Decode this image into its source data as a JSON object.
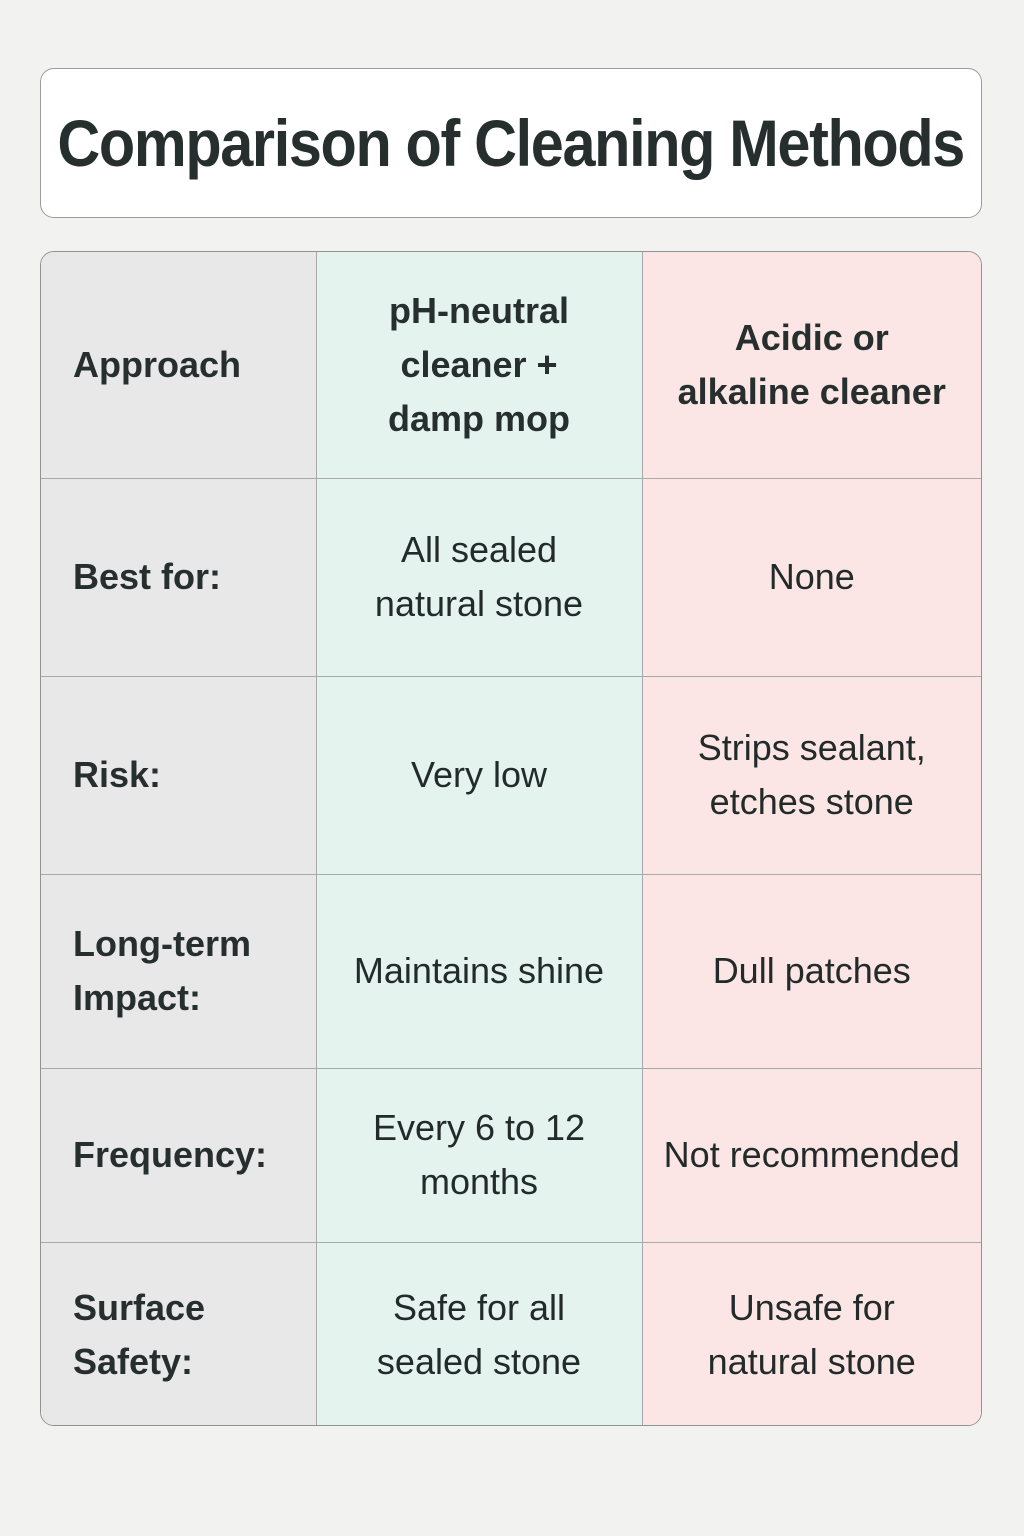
{
  "title": "Comparison of Cleaning Methods",
  "table": {
    "header": {
      "label": "Approach",
      "option_a": "pH-neutral cleaner + damp mop",
      "option_b": "Acidic or alkaline cleaner"
    },
    "rows": [
      {
        "label": "Best for:",
        "option_a": "All sealed natural stone",
        "option_b": "None"
      },
      {
        "label": "Risk:",
        "option_a": "Very low",
        "option_b": "Strips sealant, etches stone"
      },
      {
        "label": "Long-term Impact:",
        "option_a": "Maintains shine",
        "option_b": "Dull patches"
      },
      {
        "label": "Frequency:",
        "option_a": "Every 6 to 12 months",
        "option_b": "Not recommended"
      },
      {
        "label": "Surface Safety:",
        "option_a": "Safe for all sealed stone",
        "option_b": "Unsafe for natural stone"
      }
    ]
  },
  "colors": {
    "label_column": "#e8e8e8",
    "recommended_column": "#e5f3ef",
    "not_recommended_column": "#fce5e5",
    "border": "#a7aaa9",
    "background": "#f2f2f1"
  }
}
